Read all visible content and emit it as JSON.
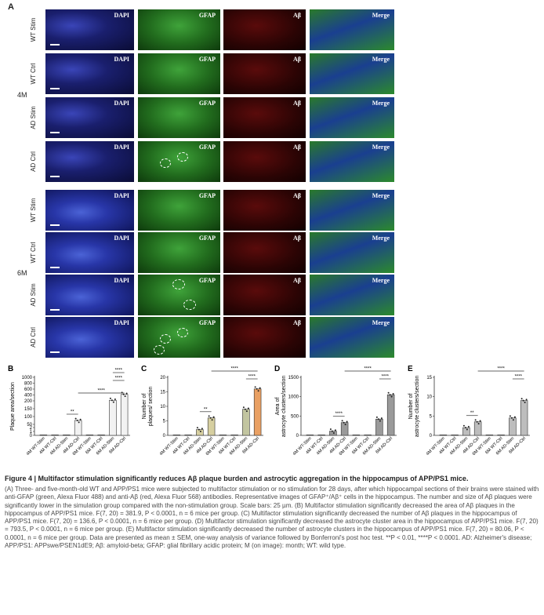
{
  "panel_a": {
    "letter": "A",
    "columns": [
      "DAPI",
      "GFAP",
      "Aβ",
      "Merge"
    ],
    "groups": [
      {
        "age": "4M",
        "rows": [
          "WT Stim",
          "WT Ctrl",
          "AD Stim",
          "AD Ctrl"
        ]
      },
      {
        "age": "6M",
        "rows": [
          "WT Stim",
          "WT Ctrl",
          "AD Stim",
          "AD Ctrl"
        ]
      }
    ]
  },
  "chart_data": [
    {
      "letter": "B",
      "type": "bar",
      "ylabel": "Plaque area/section",
      "ytick_labels": [
        "0",
        "1",
        "2",
        "50",
        "100",
        "150",
        "200",
        "400",
        "600",
        "800",
        "1000"
      ],
      "categories": [
        "4M WT-Stim",
        "4M WT-Ctrl",
        "4M AD-Stim",
        "4M AD-Ctrl",
        "6M WT-Stim",
        "6M WT-Ctrl",
        "6M AD-Stim",
        "6M AD-Ctrl"
      ],
      "values": [
        0,
        0,
        0,
        75,
        0,
        0,
        220,
        420
      ],
      "significance": [
        "**",
        "****",
        "****",
        "****"
      ]
    },
    {
      "letter": "C",
      "type": "bar",
      "ylabel": "Number of plaques/ section",
      "ylim": [
        0,
        20
      ],
      "ytick_labels": [
        "0",
        "5",
        "10",
        "15",
        "20"
      ],
      "categories": [
        "4M WT-Stim",
        "4M WT-Ctrl",
        "4M AD-Stim",
        "4M AD-Ctrl",
        "6M WT-Stim",
        "6M WT-Ctrl",
        "6M AD-Stim",
        "6M AD-Ctrl"
      ],
      "values": [
        0,
        0,
        2,
        6,
        0,
        0,
        9,
        16
      ],
      "significance": [
        "**",
        "****",
        "****"
      ]
    },
    {
      "letter": "D",
      "type": "bar",
      "ylabel": "Area of astrocyte clusters/section",
      "ylim": [
        0,
        1500
      ],
      "ytick_labels": [
        "0",
        "500",
        "1000",
        "1500"
      ],
      "categories": [
        "4M WT-Stim",
        "4M WT-Ctrl",
        "4M AD-Stim",
        "4M AD-Ctrl",
        "6M WT-Stim",
        "6M WT-Ctrl",
        "6M AD-Stim",
        "6M AD-Ctrl"
      ],
      "values": [
        0,
        0,
        110,
        330,
        0,
        0,
        420,
        1050
      ],
      "significance": [
        "****",
        "****",
        "****"
      ]
    },
    {
      "letter": "E",
      "type": "bar",
      "ylabel": "Number of astrocyte clusters/section",
      "ylim": [
        0,
        15
      ],
      "ytick_labels": [
        "0",
        "5",
        "10",
        "15"
      ],
      "categories": [
        "4M WT-Stim",
        "4M WT-Ctrl",
        "4M AD-Stim",
        "4M AD-Ctrl",
        "6M WT-Stim",
        "6M WT-Ctrl",
        "6M AD-Stim",
        "6M AD-Ctrl"
      ],
      "values": [
        0,
        0,
        2,
        3.5,
        0,
        0,
        4.5,
        9
      ],
      "significance": [
        "**",
        "****",
        "****"
      ]
    }
  ],
  "caption": {
    "title": "Figure 4 | Multifactor stimulation significantly reduces Aβ plaque burden and astrocytic aggregation in the hippocampus of APP/PS1 mice.",
    "body": "(A) Three- and five-month-old WT and APP/PS1 mice were subjected to multifactor stimulation or no stimulation for 28 days, after which hippocampal sections of their brains were stained with anti-GFAP (green, Alexa Fluor 488) and anti-Aβ (red, Alexa Fluor 568) antibodies. Representative images of GFAP⁺/Aβ⁺ cells in the hippocampus. The number and size of Aβ plaques were significantly lower in the simulation group compared with the non-stimulation group. Scale bars: 25 µm. (B) Multifactor stimulation significantly decreased the area of Aβ plaques in the hippocampus of APP/PS1 mice. F(7, 20) = 381.9, P < 0.0001, n = 6 mice per group. (C) Multifactor stimulation significantly decreased the number of Aβ plaques in the hippocampus of APP/PS1 mice. F(7, 20) = 136.6, P < 0.0001, n = 6 mice per group. (D) Multifactor stimulation significantly decreased the astrocyte cluster area in the hippocampus of APP/PS1 mice. F(7, 20) = 793.5, P < 0.0001, n = 6 mice per group. (E) Multifactor stimulation significantly decreased the number of astrocyte clusters in the hippocampus of APP/PS1 mice. F(7, 20) = 80.06, P < 0.0001, n = 6 mice per group. Data are presented as mean ± SEM, one-way analysis of variance followed by Bonferroni's post hoc test. **P < 0.01, ****P < 0.0001. AD: Alzheimer's disease; APP/PS1: APPswe/PSEN1dE9; Aβ: amyloid-beta; GFAP: glial fibrillary acidic protein; M (on image): month; WT: wild type."
  },
  "colors": {
    "bar_b": "#f2f2f2",
    "bar_c_4m": "#d6cfa0",
    "bar_c_6m_stim": "#c2c5a0",
    "bar_c_6m_ctrl": "#e9a063",
    "bar_d": "#9a9a9a",
    "bar_e": "#bdbdbd"
  }
}
